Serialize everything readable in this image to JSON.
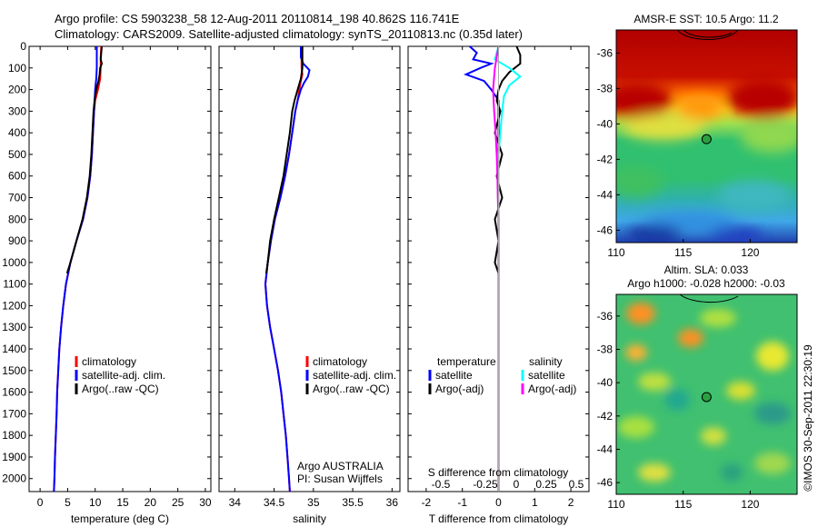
{
  "header": {
    "line1": "Argo profile: CS 5903238_58 12-Aug-2011 20110814_198 40.862S 116.741E",
    "line2": "Climatology: CARS2009. Satellite-adjusted climatology: synTS_20110813.nc (0.35d later)"
  },
  "credit": "©IMOS 30-Sep-2011 22:30:19",
  "colors": {
    "climatology": "#ff0000",
    "satellite": "#0000ff",
    "argo": "#000000",
    "satellite_salinity": "#00ffff",
    "argo_salinity": "#ff00ff"
  },
  "chart_data": [
    {
      "type": "line",
      "xlabel": "temperature (deg C)",
      "xlim": [
        -2,
        31
      ],
      "xticks": [
        0,
        5,
        10,
        15,
        20,
        25,
        30
      ],
      "ylim": [
        2060,
        0
      ],
      "yticks": [
        0,
        100,
        200,
        300,
        400,
        500,
        600,
        700,
        800,
        900,
        1000,
        1100,
        1200,
        1300,
        1400,
        1500,
        1600,
        1700,
        1800,
        1900,
        2000
      ],
      "legend": [
        {
          "label": "climatology",
          "color": "#ff0000"
        },
        {
          "label": "satellite-adj. clim.",
          "color": "#0000ff"
        },
        {
          "label": "Argo(..raw -QC)",
          "color": "#000000"
        }
      ],
      "series": [
        {
          "name": "climatology",
          "color": "#ff0000",
          "points": [
            [
              11.1,
              0
            ],
            [
              11.0,
              50
            ],
            [
              11.0,
              100
            ],
            [
              10.9,
              150
            ],
            [
              10.5,
              200
            ],
            [
              10.0,
              250
            ],
            [
              9.8,
              300
            ],
            [
              9.6,
              400
            ],
            [
              9.4,
              500
            ],
            [
              9.1,
              600
            ],
            [
              8.6,
              700
            ],
            [
              7.8,
              800
            ],
            [
              6.6,
              900
            ],
            [
              5.5,
              1000
            ],
            [
              4.7,
              1100
            ],
            [
              4.2,
              1200
            ],
            [
              3.8,
              1300
            ],
            [
              3.5,
              1400
            ],
            [
              3.3,
              1500
            ],
            [
              3.1,
              1600
            ],
            [
              3.0,
              1700
            ],
            [
              2.85,
              1800
            ],
            [
              2.7,
              1900
            ],
            [
              2.6,
              2000
            ],
            [
              2.5,
              2060
            ]
          ]
        },
        {
          "name": "satellite-adj. clim.",
          "color": "#0000ff",
          "points": [
            [
              10.3,
              0
            ],
            [
              10.3,
              50
            ],
            [
              10.3,
              100
            ],
            [
              10.2,
              150
            ],
            [
              10.0,
              200
            ],
            [
              9.9,
              250
            ],
            [
              9.8,
              300
            ],
            [
              9.6,
              400
            ],
            [
              9.4,
              500
            ],
            [
              9.1,
              600
            ],
            [
              8.6,
              700
            ],
            [
              7.8,
              800
            ],
            [
              6.6,
              900
            ],
            [
              5.5,
              1000
            ],
            [
              4.7,
              1100
            ],
            [
              4.2,
              1200
            ],
            [
              3.8,
              1300
            ],
            [
              3.5,
              1400
            ],
            [
              3.3,
              1500
            ],
            [
              3.1,
              1600
            ],
            [
              3.0,
              1700
            ],
            [
              2.85,
              1800
            ],
            [
              2.7,
              1900
            ],
            [
              2.6,
              2000
            ],
            [
              2.5,
              2060
            ]
          ]
        },
        {
          "name": "Argo(..raw -QC)",
          "color": "#000000",
          "points": [
            [
              11.2,
              0
            ],
            [
              11.1,
              30
            ],
            [
              11.0,
              60
            ],
            [
              11.2,
              80
            ],
            [
              10.9,
              100
            ],
            [
              10.8,
              130
            ],
            [
              10.6,
              160
            ],
            [
              10.2,
              200
            ],
            [
              9.9,
              250
            ],
            [
              9.7,
              300
            ],
            [
              9.5,
              400
            ],
            [
              9.3,
              500
            ],
            [
              9.0,
              600
            ],
            [
              8.5,
              700
            ],
            [
              7.7,
              800
            ],
            [
              6.6,
              900
            ],
            [
              5.5,
              1000
            ],
            [
              4.9,
              1050
            ]
          ]
        }
      ]
    },
    {
      "type": "line",
      "xlabel": "salinity",
      "xlim": [
        33.8,
        36.1
      ],
      "xticks": [
        34,
        34.5,
        35,
        35.5,
        36
      ],
      "ylim": [
        2060,
        0
      ],
      "legend": [
        {
          "label": "climatology",
          "color": "#ff0000"
        },
        {
          "label": "satellite-adj. clim.",
          "color": "#0000ff"
        },
        {
          "label": "Argo(..raw -QC)",
          "color": "#000000"
        }
      ],
      "annotation": [
        "Argo AUSTRALIA",
        "PI: Susan Wijffels"
      ],
      "series": [
        {
          "name": "climatology",
          "color": "#ff0000",
          "points": [
            [
              34.85,
              0
            ],
            [
              34.85,
              50
            ],
            [
              34.85,
              100
            ],
            [
              34.86,
              130
            ],
            [
              34.84,
              160
            ],
            [
              34.82,
              200
            ],
            [
              34.8,
              250
            ],
            [
              34.77,
              300
            ],
            [
              34.73,
              400
            ],
            [
              34.69,
              500
            ],
            [
              34.64,
              600
            ],
            [
              34.58,
              700
            ],
            [
              34.51,
              800
            ],
            [
              34.46,
              900
            ],
            [
              34.42,
              1000
            ],
            [
              34.39,
              1100
            ],
            [
              34.41,
              1200
            ],
            [
              34.45,
              1300
            ],
            [
              34.5,
              1400
            ],
            [
              34.55,
              1500
            ],
            [
              34.59,
              1600
            ],
            [
              34.62,
              1700
            ],
            [
              34.65,
              1800
            ],
            [
              34.67,
              1900
            ],
            [
              34.69,
              2000
            ],
            [
              34.7,
              2060
            ]
          ]
        },
        {
          "name": "satellite-adj. clim.",
          "color": "#0000ff",
          "points": [
            [
              34.84,
              0
            ],
            [
              34.84,
              50
            ],
            [
              34.87,
              80
            ],
            [
              34.95,
              110
            ],
            [
              34.93,
              140
            ],
            [
              34.88,
              170
            ],
            [
              34.84,
              200
            ],
            [
              34.8,
              250
            ],
            [
              34.77,
              300
            ],
            [
              34.73,
              400
            ],
            [
              34.69,
              500
            ],
            [
              34.64,
              600
            ],
            [
              34.58,
              700
            ],
            [
              34.51,
              800
            ],
            [
              34.46,
              900
            ],
            [
              34.42,
              1000
            ],
            [
              34.39,
              1100
            ],
            [
              34.41,
              1200
            ],
            [
              34.45,
              1300
            ],
            [
              34.5,
              1400
            ],
            [
              34.55,
              1500
            ],
            [
              34.59,
              1600
            ],
            [
              34.62,
              1700
            ],
            [
              34.65,
              1800
            ],
            [
              34.67,
              1900
            ],
            [
              34.69,
              2000
            ],
            [
              34.7,
              2060
            ]
          ]
        },
        {
          "name": "Argo(..raw -QC)",
          "color": "#000000",
          "points": [
            [
              34.86,
              0
            ],
            [
              34.86,
              50
            ],
            [
              34.86,
              100
            ],
            [
              34.84,
              150
            ],
            [
              34.8,
              200
            ],
            [
              34.76,
              250
            ],
            [
              34.73,
              300
            ],
            [
              34.7,
              400
            ],
            [
              34.66,
              500
            ],
            [
              34.62,
              600
            ],
            [
              34.56,
              700
            ],
            [
              34.5,
              800
            ],
            [
              34.45,
              900
            ],
            [
              34.42,
              1000
            ],
            [
              34.4,
              1050
            ]
          ]
        }
      ]
    },
    {
      "type": "line",
      "xlabel": "T difference from climatology",
      "xlabel_top": "S difference from climatology",
      "xlim": [
        -2.5,
        2.5
      ],
      "xticks": [
        -2,
        -1,
        0,
        1,
        2
      ],
      "sticks": [
        "-0.5",
        "-0.25",
        "0",
        "0.25",
        "0.5"
      ],
      "ylim": [
        2060,
        0
      ],
      "legend_headers": [
        "temperature",
        "salinity"
      ],
      "legend": [
        {
          "label": "satellite",
          "color": "#0000ff"
        },
        {
          "label": "Argo(-adj)",
          "color": "#000000"
        },
        {
          "label": "satellite",
          "color": "#00ffff"
        },
        {
          "label": "Argo(-adj)",
          "color": "#ff00ff"
        }
      ],
      "series": [
        {
          "name": "satellite",
          "color": "#0000ff",
          "points": [
            [
              -0.8,
              0
            ],
            [
              -0.6,
              30
            ],
            [
              -0.7,
              60
            ],
            [
              -0.2,
              80
            ],
            [
              -0.5,
              100
            ],
            [
              -0.9,
              130
            ],
            [
              -0.4,
              160
            ],
            [
              -0.2,
              200
            ],
            [
              0,
              250
            ],
            [
              0,
              400
            ],
            [
              0,
              2060
            ]
          ]
        },
        {
          "name": "Argo(-adj)",
          "color": "#000000",
          "points": [
            [
              0.5,
              0
            ],
            [
              0.6,
              40
            ],
            [
              0.6,
              80
            ],
            [
              0.3,
              120
            ],
            [
              0.1,
              160
            ],
            [
              0.0,
              200
            ],
            [
              -0.05,
              250
            ],
            [
              0.05,
              300
            ],
            [
              -0.1,
              400
            ],
            [
              0.1,
              500
            ],
            [
              -0.05,
              600
            ],
            [
              0.1,
              700
            ],
            [
              -0.1,
              800
            ],
            [
              0.0,
              900
            ],
            [
              -0.1,
              1000
            ],
            [
              0.0,
              1050
            ]
          ]
        },
        {
          "name": "satellite",
          "color": "#00ffff",
          "points": [
            [
              0,
              0
            ],
            [
              -0.1,
              60
            ],
            [
              0.3,
              100
            ],
            [
              0.6,
              140
            ],
            [
              0.3,
              180
            ],
            [
              0.15,
              230
            ],
            [
              0.1,
              300
            ],
            [
              0.05,
              400
            ],
            [
              0,
              500
            ],
            [
              0,
              2060
            ]
          ]
        },
        {
          "name": "Argo(-adj)",
          "color": "#ff00ff",
          "points": [
            [
              0,
              0
            ],
            [
              -0.1,
              100
            ],
            [
              -0.15,
              200
            ],
            [
              -0.12,
              300
            ],
            [
              -0.08,
              400
            ],
            [
              -0.05,
              500
            ],
            [
              -0.03,
              600
            ],
            [
              -0.02,
              700
            ],
            [
              0,
              800
            ],
            [
              0,
              2060
            ]
          ]
        }
      ]
    },
    {
      "type": "heatmap",
      "title": "AMSR-E SST: 10.5  Argo: 11.2",
      "xticks": [
        110,
        115,
        120
      ],
      "yticks": [
        -36,
        -38,
        -40,
        -42,
        -44,
        -46
      ],
      "xlim": [
        110,
        123.5
      ],
      "ylim": [
        -46.7,
        -34.7
      ],
      "argo_position": [
        116.741,
        -40.862
      ]
    },
    {
      "type": "heatmap",
      "title_lines": [
        "Altim. SLA: 0.033",
        "Argo h1000: -0.028 h2000: -0.03"
      ],
      "xticks": [
        110,
        115,
        120
      ],
      "yticks": [
        -36,
        -38,
        -40,
        -42,
        -44,
        -46
      ],
      "xlim": [
        110,
        123.5
      ],
      "ylim": [
        -46.7,
        -34.7
      ],
      "argo_position": [
        116.741,
        -40.862
      ]
    }
  ]
}
